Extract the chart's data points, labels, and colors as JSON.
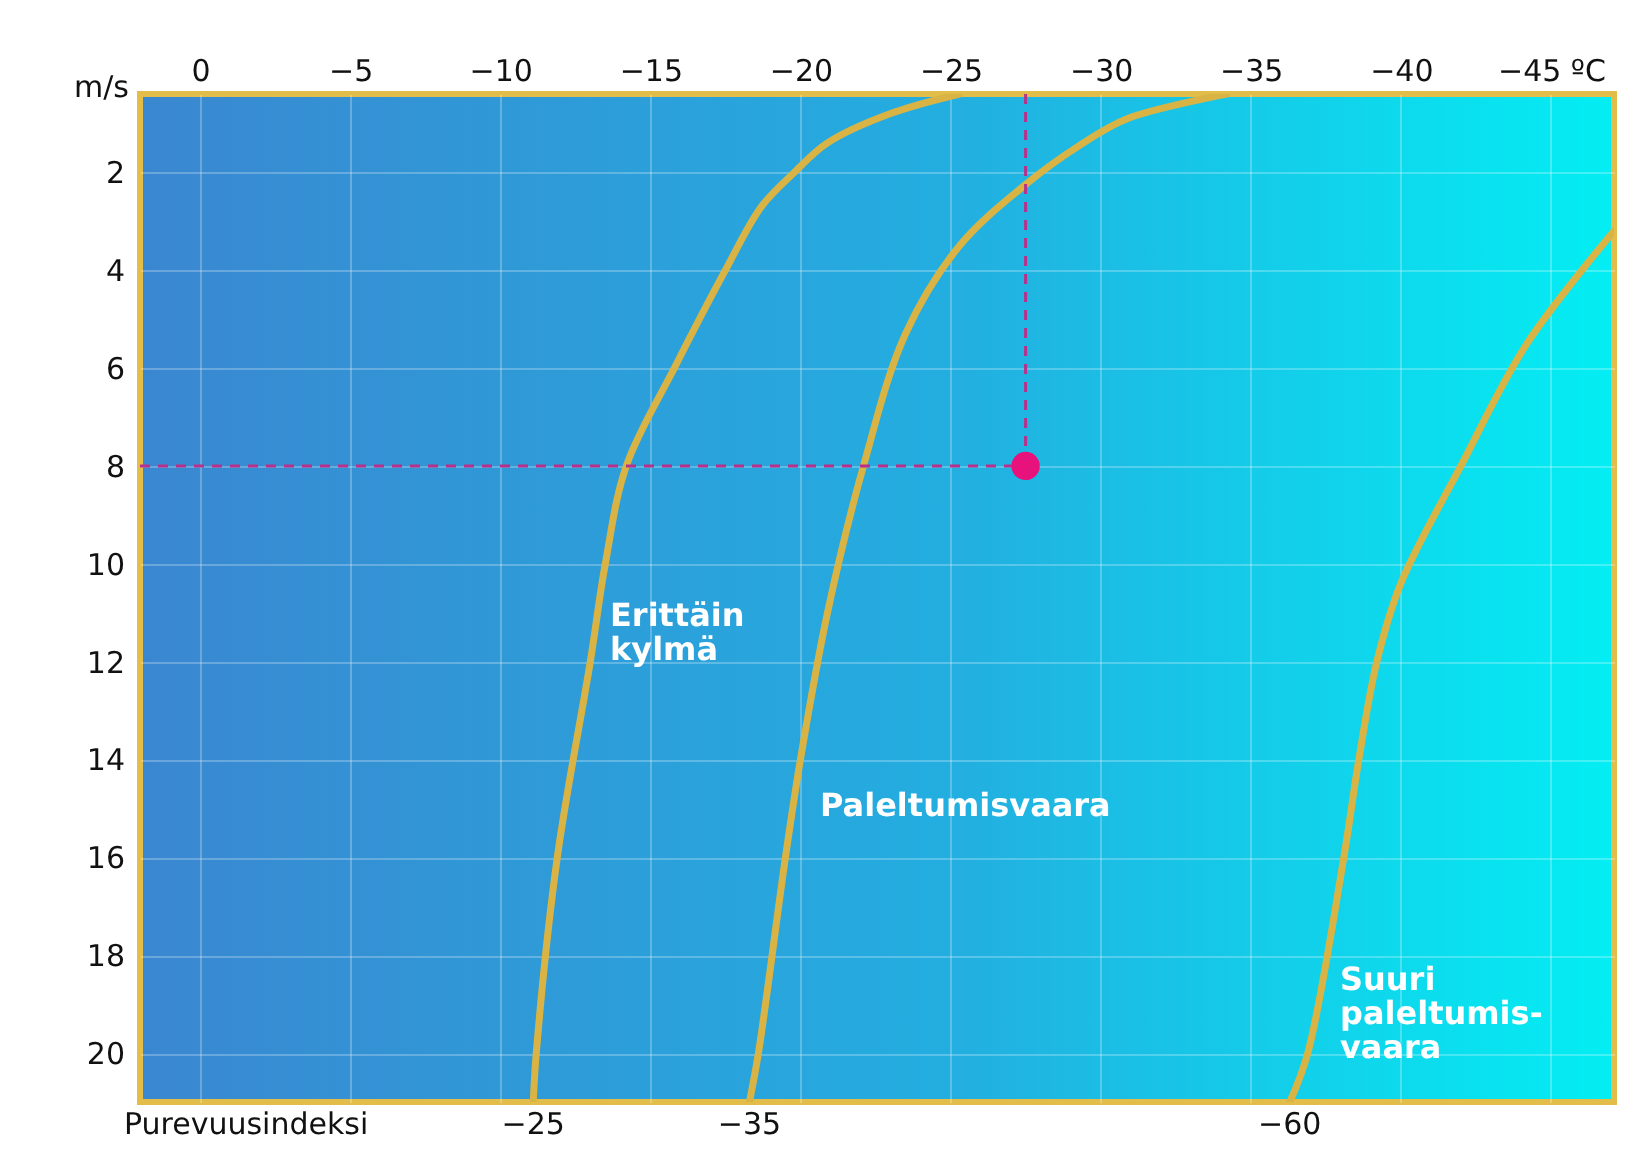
{
  "chart_data": {
    "type": "line",
    "ylabel": "m/s",
    "xlim": [
      2,
      -47.1
    ],
    "ylim": [
      21,
      0.4
    ],
    "xticks": [
      0,
      {
        "value": -5,
        "label": "−5"
      },
      {
        "value": -10,
        "label": "−10"
      },
      {
        "value": -15,
        "label": "−15"
      },
      {
        "value": -20,
        "label": "−20"
      },
      {
        "value": -25,
        "label": "−25"
      },
      {
        "value": -30,
        "label": "−30"
      },
      {
        "value": -35,
        "label": "−35"
      },
      {
        "value": -40,
        "label": "−40"
      },
      {
        "value": -45,
        "label": "−45 ºC"
      }
    ],
    "yticks": [
      2,
      4,
      6,
      8,
      10,
      12,
      14,
      16,
      18,
      20
    ],
    "grid": true,
    "series": [
      {
        "color": "#d9b445",
        "x": [
          -25.3,
          -23,
          -20.9,
          -19.8,
          -18.7,
          -17.5,
          -15.8,
          -14.2,
          -13.5,
          -13,
          -11.9,
          -11.2,
          -11.1
        ],
        "values": [
          0.4,
          0.8,
          1.4,
          2.0,
          2.7,
          4,
          6,
          8,
          10,
          12,
          16,
          20,
          21
        ]
      },
      {
        "color": "#d9b445",
        "x": [
          -34.2,
          -30.9,
          -29.3,
          -27.5,
          -25.3,
          -23.5,
          -22.1,
          -20.9,
          -20,
          -19.5,
          -18.6,
          -18.3
        ],
        "values": [
          0.4,
          0.9,
          1.45,
          2.25,
          3.5,
          5.3,
          8,
          11,
          14,
          16,
          20,
          21
        ]
      },
      {
        "color": "#d9b445",
        "x": [
          -47.1,
          -44.2,
          -42,
          -40,
          -39.2,
          -38.6,
          -38.1,
          -36.9,
          -36.3
        ],
        "values": [
          3.2,
          5.5,
          8,
          10.4,
          12,
          14,
          16,
          20,
          21
        ]
      },
      {
        "type": "scatter",
        "color": "#e8127c",
        "x": [
          -27.5
        ],
        "values": [
          8
        ]
      }
    ],
    "ref_lines": [
      {
        "axis": "x",
        "value": -27.5,
        "color": "#b8308a",
        "line_style": "dashed"
      },
      {
        "axis": "y",
        "value": 8,
        "color": "#b8308a",
        "line_style": "dashed"
      }
    ],
    "annotations": [
      "Purevuusindeksi",
      {
        "text": "−25",
        "x": -11.1,
        "y": 21
      },
      {
        "text": "−35",
        "x": -18.3,
        "y": 21
      },
      {
        "text": "−60",
        "x": -36.3,
        "y": 21
      },
      "Erittäin\nkylmä",
      "Paleltumisvaara",
      "Suuri\npaleltumis-\nvaara"
    ]
  }
}
